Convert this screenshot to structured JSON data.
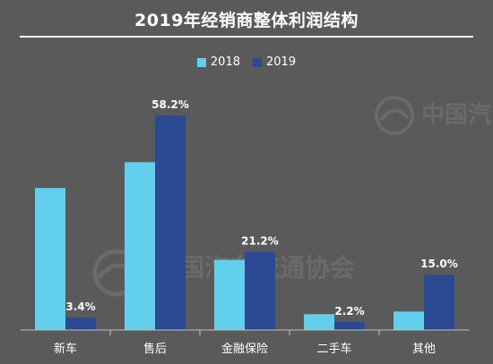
{
  "chart_data": {
    "type": "bar",
    "title": "2019年经销商整体利润结构",
    "categories": [
      "新车",
      "售后",
      "金融保险",
      "二手车",
      "其他"
    ],
    "series": [
      {
        "name": "2018",
        "values": [
          38.5,
          45.5,
          19.0,
          4.3,
          5.0
        ],
        "color": "#62d0ec"
      },
      {
        "name": "2019",
        "values": [
          3.4,
          58.2,
          21.2,
          2.2,
          15.0
        ],
        "color": "#2b4a93"
      }
    ],
    "data_labels": [
      "3.4%",
      "58.2%",
      "21.2%",
      "2.2%",
      "15.0%"
    ],
    "ylim": [
      0,
      60
    ],
    "grid": false,
    "legend_position": "top-center"
  },
  "watermark": {
    "text1": "中国汽",
    "text2": "国汽车流通协会"
  }
}
